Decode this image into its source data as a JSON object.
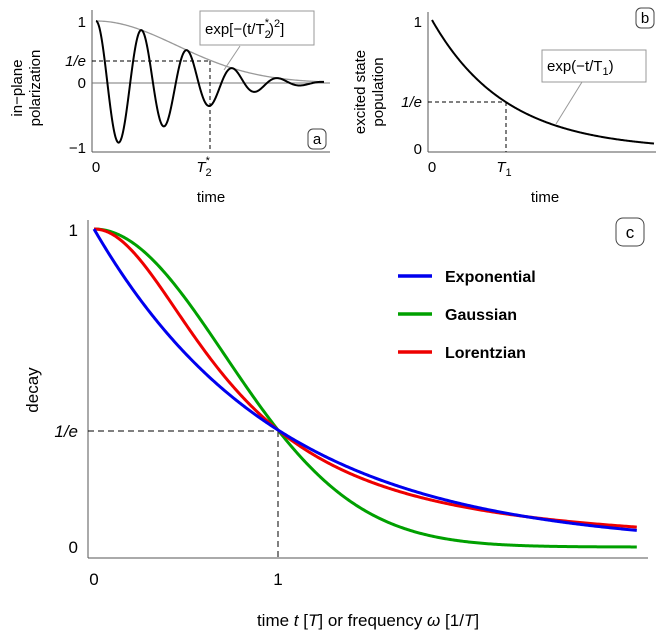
{
  "chart_data": [
    {
      "panel": "a",
      "type": "line",
      "xlabel": "time",
      "ylabel_line1": "in−plane",
      "ylabel_line2": "polarization",
      "xticks": [
        {
          "value": 0,
          "label": "0"
        },
        {
          "value": 1,
          "label_main": "T",
          "label_sub": "2",
          "label_sup": "*"
        }
      ],
      "yticks": [
        {
          "value": 1,
          "label": "1"
        },
        {
          "value": 0.3679,
          "label": "1/e"
        },
        {
          "value": 0,
          "label": "0"
        },
        {
          "value": -1,
          "label": "−1"
        }
      ],
      "annotation": {
        "pre": "exp[−(t/T",
        "sub": "2",
        "sup": "*",
        "post": ")",
        "sup2": "2",
        "end": "]"
      },
      "xlim": [
        0,
        2.0
      ],
      "ylim": [
        -1.1,
        1.1
      ],
      "series": [
        {
          "role": "oscillation",
          "x_range": [
            0,
            2.0
          ],
          "formula": "exp(-x^2)*cos(2*pi*x/0.4)"
        },
        {
          "role": "envelope",
          "x_range": [
            0,
            2.0
          ],
          "formula": "exp(-x^2)"
        }
      ],
      "colors": {
        "oscillation": "#000000",
        "envelope": "#999999"
      }
    },
    {
      "panel": "b",
      "type": "line",
      "xlabel": "time",
      "ylabel_line1": "excited state",
      "ylabel_line2": "population",
      "xticks": [
        {
          "value": 0,
          "label": "0"
        },
        {
          "value": 1,
          "label_main": "T",
          "label_sub": "1"
        }
      ],
      "yticks": [
        {
          "value": 1,
          "label": "1"
        },
        {
          "value": 0.3679,
          "label": "1/e"
        },
        {
          "value": 0,
          "label": "0"
        }
      ],
      "annotation": {
        "pre": "exp(−t/T",
        "sub": "1",
        "post": ")"
      },
      "xlim": [
        0,
        3.0
      ],
      "ylim": [
        0,
        1.05
      ],
      "series": [
        {
          "role": "decay",
          "x_range": [
            0,
            3.0
          ],
          "formula": "exp(-x)"
        }
      ],
      "colors": {
        "decay": "#000000"
      }
    },
    {
      "panel": "c",
      "type": "line",
      "xlabel_parts": [
        "time ",
        "t",
        " [",
        "T",
        "] or frequency ",
        "ω",
        " [1/",
        "T",
        "]"
      ],
      "ylabel": "decay",
      "xticks": [
        {
          "value": 0,
          "label": "0"
        },
        {
          "value": 1,
          "label": "1"
        }
      ],
      "yticks": [
        {
          "value": 1,
          "label": "1"
        },
        {
          "value": 0.3679,
          "label": "1/e"
        },
        {
          "value": 0,
          "label": "0"
        }
      ],
      "xlim": [
        0,
        2.95
      ],
      "ylim": [
        0,
        1
      ],
      "legend_position": "top-right",
      "series": [
        {
          "name": "Exponential",
          "color": "#0000ee",
          "x_range": [
            0,
            2.95
          ],
          "formula": "exp(-x)"
        },
        {
          "name": "Gaussian",
          "color": "#00a000",
          "x_range": [
            0,
            2.95
          ],
          "formula": "exp(-x^2)"
        },
        {
          "name": "Lorentzian",
          "color": "#ee0000",
          "x_range": [
            0,
            2.95
          ],
          "formula": "1/(1+(e-1)*x^2)"
        }
      ]
    }
  ],
  "panel_tags": {
    "a": "a",
    "b": "b",
    "c": "c"
  }
}
